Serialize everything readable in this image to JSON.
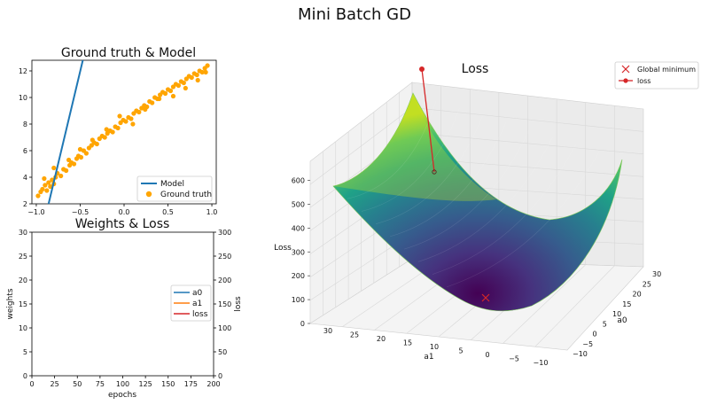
{
  "figure": {
    "title": "Mini Batch GD"
  },
  "chart_data": [
    {
      "id": "ground_truth_model",
      "type": "scatter",
      "title": "Ground truth & Model",
      "xlim": [
        -1.05,
        1.05
      ],
      "ylim": [
        2,
        12.8
      ],
      "xticks": [
        -1.0,
        -0.5,
        0.0,
        0.5,
        1.0
      ],
      "xtick_labels": [
        "−1.0",
        "−0.5",
        "0.0",
        "0.5",
        "1.0"
      ],
      "yticks": [
        2,
        4,
        6,
        8,
        10,
        12
      ],
      "ytick_labels": [
        "2",
        "4",
        "6",
        "8",
        "10",
        "12"
      ],
      "legend_position": "lower-right",
      "series": [
        {
          "name": "Model",
          "kind": "line",
          "color": "#1f77b4",
          "x": [
            -0.86,
            -0.47
          ],
          "y": [
            2.0,
            12.8
          ]
        },
        {
          "name": "Ground truth",
          "kind": "scatter",
          "color": "#ffa500",
          "x": [
            -0.98,
            -0.95,
            -0.93,
            -0.9,
            -0.88,
            -0.86,
            -0.84,
            -0.82,
            -0.8,
            -0.78,
            -0.76,
            -0.72,
            -0.69,
            -0.66,
            -0.62,
            -0.6,
            -0.57,
            -0.54,
            -0.52,
            -0.49,
            -0.46,
            -0.43,
            -0.4,
            -0.37,
            -0.34,
            -0.31,
            -0.28,
            -0.25,
            -0.22,
            -0.19,
            -0.16,
            -0.13,
            -0.1,
            -0.07,
            -0.04,
            -0.01,
            0.02,
            0.05,
            0.08,
            0.11,
            0.14,
            0.17,
            0.2,
            0.23,
            0.26,
            0.29,
            0.32,
            0.35,
            0.38,
            0.41,
            0.44,
            0.47,
            0.5,
            0.53,
            0.56,
            0.59,
            0.62,
            0.65,
            0.68,
            0.71,
            0.74,
            0.77,
            0.8,
            0.83,
            0.86,
            0.89,
            0.92,
            0.95,
            -0.91,
            -0.8,
            -0.63,
            -0.5,
            -0.36,
            -0.2,
            -0.05,
            0.1,
            0.24,
            0.4,
            0.56,
            0.7,
            0.84,
            0.93
          ],
          "y": [
            2.6,
            2.9,
            3.1,
            3.4,
            3.0,
            3.6,
            3.3,
            3.8,
            3.5,
            4.0,
            4.3,
            4.1,
            4.6,
            4.5,
            4.9,
            5.1,
            5.0,
            5.4,
            5.6,
            5.5,
            6.0,
            5.8,
            6.2,
            6.4,
            6.6,
            6.5,
            6.9,
            7.1,
            7.0,
            7.3,
            7.5,
            7.4,
            7.8,
            7.7,
            8.1,
            8.3,
            8.2,
            8.5,
            8.4,
            8.8,
            9.0,
            8.9,
            9.2,
            9.4,
            9.3,
            9.7,
            9.6,
            10.0,
            9.9,
            10.2,
            10.4,
            10.3,
            10.6,
            10.5,
            10.8,
            11.0,
            10.9,
            11.2,
            11.1,
            11.4,
            11.6,
            11.5,
            11.8,
            11.7,
            12.0,
            11.9,
            12.2,
            12.4,
            3.9,
            4.7,
            5.3,
            6.1,
            6.8,
            7.6,
            8.6,
            8.0,
            9.1,
            9.9,
            10.1,
            10.7,
            11.3,
            11.9
          ]
        }
      ]
    },
    {
      "id": "weights_loss",
      "type": "line",
      "title": "Weights & Loss",
      "xlabel": "epochs",
      "ylabel": "weights",
      "y2label": "loss",
      "xlim": [
        0,
        200
      ],
      "ylim": [
        0,
        30
      ],
      "y2lim": [
        0,
        300
      ],
      "xticks": [
        0,
        25,
        50,
        75,
        100,
        125,
        150,
        175,
        200
      ],
      "yticks": [
        0,
        5,
        10,
        15,
        20,
        25,
        30
      ],
      "y2ticks": [
        0,
        50,
        100,
        150,
        200,
        250,
        300
      ],
      "legend_position": "center-right",
      "series": [
        {
          "name": "a0",
          "color": "#1f77b4",
          "values": []
        },
        {
          "name": "a1",
          "color": "#ff7f0e",
          "values": []
        },
        {
          "name": "loss",
          "color": "#d62728",
          "values": []
        }
      ]
    },
    {
      "id": "loss_surface",
      "type": "surface3d",
      "title": "Loss",
      "zlabel": "Loss",
      "xlabel": "a1",
      "ylabel": "a0",
      "zticks": [
        0,
        100,
        200,
        300,
        400,
        500,
        600
      ],
      "a1ticks": [
        30,
        25,
        20,
        15,
        10,
        5,
        0,
        -5,
        -10
      ],
      "a0ticks": [
        -10,
        -5,
        0,
        5,
        10,
        15,
        20,
        25,
        30
      ],
      "colormap": "viridis",
      "legend_position": "top-right",
      "legend": [
        {
          "name": "Global minimum",
          "marker": "x",
          "color": "#d62728"
        },
        {
          "name": "loss",
          "marker": "o-line",
          "color": "#d62728"
        }
      ]
    }
  ]
}
